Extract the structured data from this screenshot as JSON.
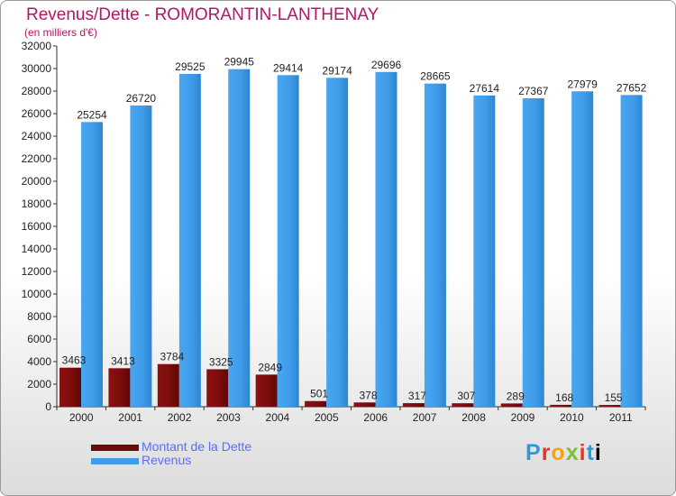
{
  "header": {
    "title": "Revenus/Dette - ROMORANTIN-LANTHENAY",
    "subtitle": "(en milliers d'€)"
  },
  "logo": {
    "text": "Proxiti"
  },
  "colors": {
    "dette": "#7a0c0c",
    "revenus": "#3d9be9",
    "title": "#b3175d",
    "legend_text": "#5b6bff"
  },
  "chart_data": {
    "type": "bar",
    "categories": [
      "2000",
      "2001",
      "2002",
      "2003",
      "2004",
      "2005",
      "2006",
      "2007",
      "2008",
      "2009",
      "2010",
      "2011"
    ],
    "series": [
      {
        "name": "Montant de la Dette",
        "values": [
          3463,
          3413,
          3784,
          3325,
          2849,
          501,
          378,
          317,
          307,
          289,
          168,
          155
        ]
      },
      {
        "name": "Revenus",
        "values": [
          25254,
          26720,
          29525,
          29945,
          29414,
          29174,
          29696,
          28665,
          27614,
          27367,
          27979,
          27652
        ]
      }
    ],
    "dette_labels": [
      "3463",
      "3413",
      "3784",
      "3325",
      "2849",
      "501",
      "378",
      "317",
      "307",
      "289",
      "168",
      "155"
    ],
    "ylim": [
      0,
      32000
    ],
    "yticks": [
      0,
      2000,
      4000,
      6000,
      8000,
      10000,
      12000,
      14000,
      16000,
      18000,
      20000,
      22000,
      24000,
      26000,
      28000,
      30000,
      32000
    ],
    "grid": false,
    "legend_position": "bottom-left"
  }
}
